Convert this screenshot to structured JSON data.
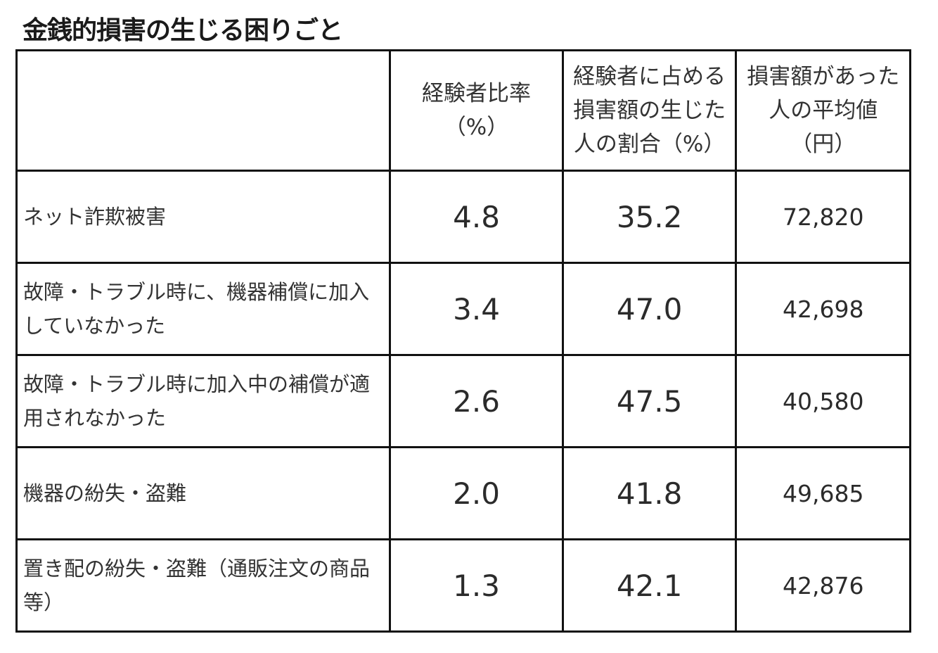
{
  "title": "金銭的損害の生じる困りごと",
  "headers": [
    "",
    "経験者比率\n（%）",
    "経験者に占める\n損害額の生じた\n人の割合（%）",
    "損害額があった\n人の平均値\n（円）"
  ],
  "rows": [
    {
      "label": "ネット詐欺被害",
      "rate": "4.8",
      "share": "35.2",
      "avg": "72,820"
    },
    {
      "label": "故障・トラブル時に、機器補償に加入していなかった",
      "rate": "3.4",
      "share": "47.0",
      "avg": "42,698"
    },
    {
      "label": "故障・トラブル時に加入中の補償が適用されなかった",
      "rate": "2.6",
      "share": "47.5",
      "avg": "40,580"
    },
    {
      "label": "機器の紛失・盗難",
      "rate": "2.0",
      "share": "41.8",
      "avg": "49,685"
    },
    {
      "label": "置き配の紛失・盗難（通販注文の商品等）",
      "rate": "1.3",
      "share": "42.1",
      "avg": "42,876"
    }
  ]
}
